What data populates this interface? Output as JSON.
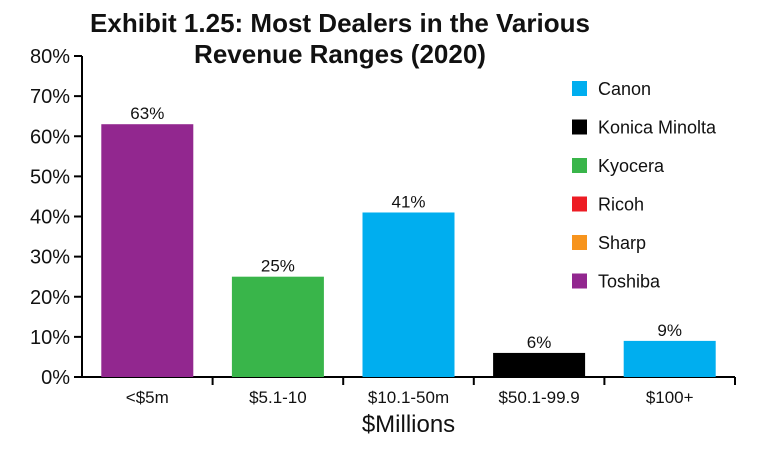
{
  "chart_data": {
    "type": "bar",
    "title": "Exhibit 1.25: Most Dealers in the Various Revenue Ranges (2020)",
    "xlabel": "$Millions",
    "ylabel": "",
    "ylim": [
      0,
      80
    ],
    "yticks": [
      0,
      10,
      20,
      30,
      40,
      50,
      60,
      70,
      80
    ],
    "ytick_labels": [
      "0%",
      "10%",
      "20%",
      "30%",
      "40%",
      "50%",
      "60%",
      "70%",
      "80%"
    ],
    "legend_position": "right",
    "legend": [
      {
        "name": "Canon",
        "color": "#00AEEF"
      },
      {
        "name": "Konica Minolta",
        "color": "#000000"
      },
      {
        "name": "Kyocera",
        "color": "#39B54A"
      },
      {
        "name": "Ricoh",
        "color": "#ED1C24"
      },
      {
        "name": "Sharp",
        "color": "#F7941D"
      },
      {
        "name": "Toshiba",
        "color": "#92278F"
      }
    ],
    "bars": [
      {
        "category": "<$5m",
        "value": 63,
        "label": "63%",
        "brand": "Toshiba",
        "color": "#92278F"
      },
      {
        "category": "$5.1-10",
        "value": 25,
        "label": "25%",
        "brand": "Kyocera",
        "color": "#39B54A"
      },
      {
        "category": "$10.1-50m",
        "value": 41,
        "label": "41%",
        "brand": "Canon",
        "color": "#00AEEF"
      },
      {
        "category": "$50.1-99.9",
        "value": 6,
        "label": "6%",
        "brand": "Konica Minolta",
        "color": "#000000"
      },
      {
        "category": "$100+",
        "value": 9,
        "label": "9%",
        "brand": "Canon",
        "color": "#00AEEF"
      }
    ]
  }
}
